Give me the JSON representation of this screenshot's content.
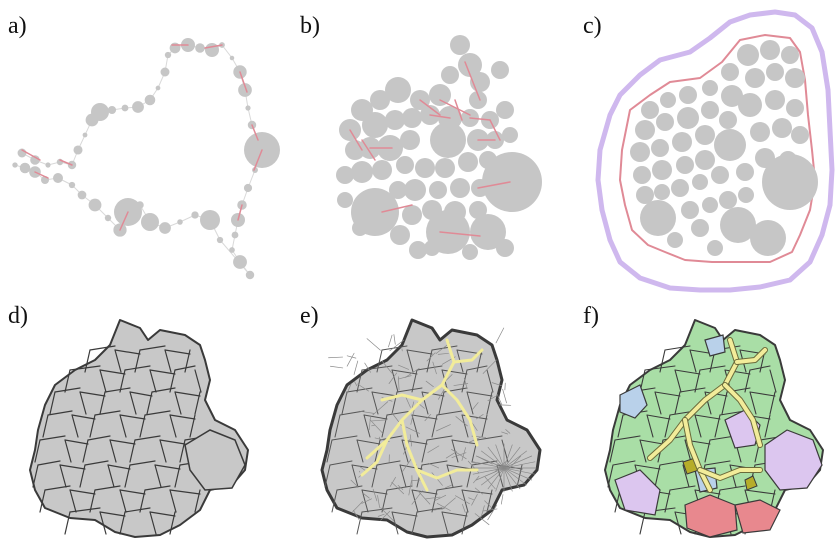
{
  "panels": [
    {
      "id": "a",
      "label": "a)"
    },
    {
      "id": "b",
      "label": "b)"
    },
    {
      "id": "c",
      "label": "c)"
    },
    {
      "id": "d",
      "label": "d)"
    },
    {
      "id": "e",
      "label": "e)"
    },
    {
      "id": "f",
      "label": "f)"
    }
  ],
  "colors": {
    "circle": "#c6c6c6",
    "cell": "#c8c8c8",
    "edge": "#e08a96",
    "link": "#d9d9d9",
    "outline": "#3a3a3a",
    "hull": "#cfb8ee",
    "skeleton": "#f2ec9a",
    "green": "#a9dea6",
    "lilac": "#dcc6ef",
    "blue": "#b9d1ea",
    "red": "#e8888e",
    "olive": "#b6ad2a"
  }
}
